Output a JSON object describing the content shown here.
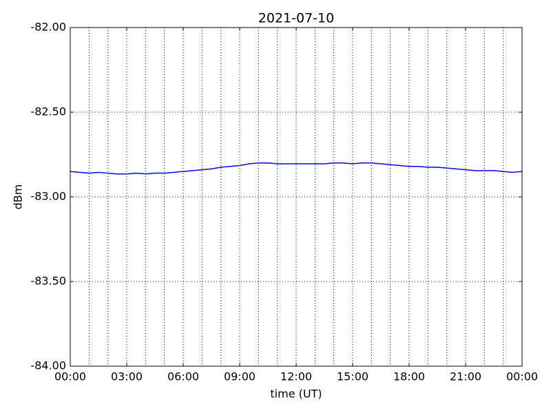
{
  "chart_data": {
    "type": "line",
    "title": "2021-07-10",
    "xlabel": "time (UT)",
    "ylabel": "dBm",
    "xlim": [
      0,
      24
    ],
    "xticks": [
      {
        "value": 0,
        "label": "00:00"
      },
      {
        "value": 3,
        "label": "03:00"
      },
      {
        "value": 6,
        "label": "06:00"
      },
      {
        "value": 9,
        "label": "09:00"
      },
      {
        "value": 12,
        "label": "12:00"
      },
      {
        "value": 15,
        "label": "15:00"
      },
      {
        "value": 18,
        "label": "18:00"
      },
      {
        "value": 21,
        "label": "21:00"
      },
      {
        "value": 24,
        "label": "00:00"
      }
    ],
    "xgrid": [
      1,
      2,
      3,
      4,
      5,
      6,
      7,
      8,
      9,
      10,
      11,
      12,
      13,
      14,
      15,
      16,
      17,
      18,
      19,
      20,
      21,
      22,
      23
    ],
    "ylim": [
      -84,
      -82
    ],
    "yticks": [
      {
        "value": -84,
        "label": "-84.00"
      },
      {
        "value": -83.5,
        "label": "-83.50"
      },
      {
        "value": -83,
        "label": "-83.00"
      },
      {
        "value": -82.5,
        "label": "-82.50"
      },
      {
        "value": -82,
        "label": "-82.00"
      }
    ],
    "grid": true,
    "x": [
      0,
      0.5,
      1,
      1.5,
      2,
      2.5,
      3,
      3.5,
      4,
      4.5,
      5,
      5.5,
      6,
      6.5,
      7,
      7.5,
      8,
      8.5,
      9,
      9.5,
      10,
      10.5,
      11,
      11.5,
      12,
      12.5,
      13,
      13.5,
      14,
      14.5,
      15,
      15.5,
      16,
      16.5,
      17,
      17.5,
      18,
      18.5,
      19,
      19.5,
      20,
      20.5,
      21,
      21.5,
      22,
      22.5,
      23,
      23.5,
      24
    ],
    "series": [
      {
        "color": "#0000ff",
        "values": [
          -82.85,
          -82.855,
          -82.86,
          -82.855,
          -82.86,
          -82.865,
          -82.865,
          -82.86,
          -82.865,
          -82.86,
          -82.86,
          -82.855,
          -82.85,
          -82.845,
          -82.84,
          -82.835,
          -82.825,
          -82.82,
          -82.815,
          -82.805,
          -82.8,
          -82.8,
          -82.805,
          -82.805,
          -82.805,
          -82.805,
          -82.805,
          -82.805,
          -82.8,
          -82.8,
          -82.805,
          -82.8,
          -82.8,
          -82.805,
          -82.81,
          -82.815,
          -82.82,
          -82.82,
          -82.825,
          -82.825,
          -82.83,
          -82.835,
          -82.84,
          -82.845,
          -82.845,
          -82.845,
          -82.85,
          -82.855,
          -82.85
        ]
      }
    ]
  }
}
